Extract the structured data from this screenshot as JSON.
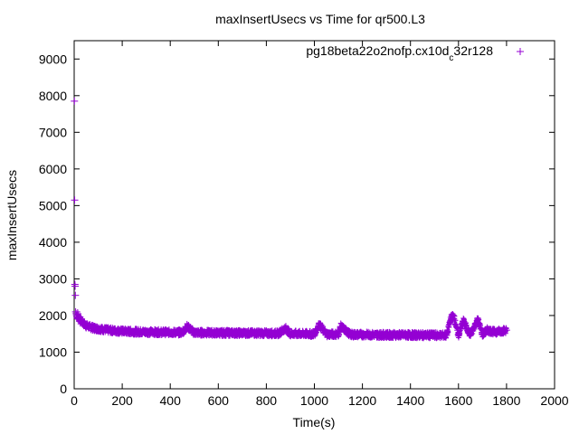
{
  "chart_data": {
    "type": "scatter",
    "title": "maxInsertUsecs vs Time for qr500.L3",
    "xlabel": "Time(s)",
    "ylabel": "maxInsertUsecs",
    "xlim": [
      0,
      2000
    ],
    "ylim": [
      0,
      9500
    ],
    "xticks": [
      0,
      200,
      400,
      600,
      800,
      1000,
      1200,
      1400,
      1600,
      1800,
      2000
    ],
    "yticks": [
      0,
      1000,
      2000,
      3000,
      4000,
      5000,
      6000,
      7000,
      8000,
      9000
    ],
    "legend_position": "top-right",
    "grid": false,
    "marker": "plus",
    "series": [
      {
        "name": "pg18beta2_o2nofp.cx10d_c32r128",
        "name_parts": [
          {
            "text": "pg18beta2",
            "sub": false
          },
          {
            "text": "2o",
            "sub": false
          },
          {
            "text": "2nofp.cx10d",
            "sub": false
          },
          {
            "text": "c",
            "sub": true
          },
          {
            "text": "32r128",
            "sub": false
          }
        ],
        "color": "#9400d3",
        "points": [
          [
            1,
            7850
          ],
          [
            2,
            5150
          ],
          [
            3,
            2850
          ],
          [
            4,
            2800
          ],
          [
            5,
            2550
          ],
          [
            6,
            2100
          ],
          [
            8,
            2050
          ],
          [
            10,
            2000
          ],
          [
            12,
            1950
          ],
          [
            15,
            2050
          ],
          [
            18,
            1900
          ],
          [
            20,
            1950
          ],
          [
            25,
            1850
          ],
          [
            30,
            1900
          ],
          [
            35,
            1800
          ],
          [
            40,
            1780
          ],
          [
            45,
            1750
          ],
          [
            50,
            1720
          ],
          [
            60,
            1700
          ],
          [
            70,
            1680
          ],
          [
            80,
            1660
          ],
          [
            90,
            1650
          ],
          [
            100,
            1640
          ],
          [
            120,
            1620
          ],
          [
            140,
            1600
          ],
          [
            160,
            1590
          ],
          [
            180,
            1580
          ],
          [
            200,
            1570
          ],
          [
            250,
            1560
          ],
          [
            300,
            1550
          ],
          [
            350,
            1545
          ],
          [
            400,
            1540
          ],
          [
            450,
            1535
          ],
          [
            470,
            1700
          ],
          [
            500,
            1530
          ],
          [
            550,
            1530
          ],
          [
            600,
            1525
          ],
          [
            650,
            1525
          ],
          [
            700,
            1520
          ],
          [
            750,
            1520
          ],
          [
            800,
            1515
          ],
          [
            850,
            1510
          ],
          [
            880,
            1650
          ],
          [
            900,
            1505
          ],
          [
            950,
            1500
          ],
          [
            1000,
            1495
          ],
          [
            1020,
            1750
          ],
          [
            1050,
            1490
          ],
          [
            1100,
            1490
          ],
          [
            1110,
            1700
          ],
          [
            1150,
            1480
          ],
          [
            1200,
            1480
          ],
          [
            1250,
            1475
          ],
          [
            1300,
            1470
          ],
          [
            1350,
            1470
          ],
          [
            1400,
            1465
          ],
          [
            1450,
            1465
          ],
          [
            1500,
            1460
          ],
          [
            1550,
            1460
          ],
          [
            1570,
            1950
          ],
          [
            1580,
            1980
          ],
          [
            1600,
            1460
          ],
          [
            1620,
            1850
          ],
          [
            1650,
            1460
          ],
          [
            1680,
            1900
          ],
          [
            1700,
            1480
          ],
          [
            1720,
            1600
          ],
          [
            1750,
            1550
          ],
          [
            1780,
            1580
          ],
          [
            1800,
            1600
          ]
        ]
      }
    ]
  }
}
